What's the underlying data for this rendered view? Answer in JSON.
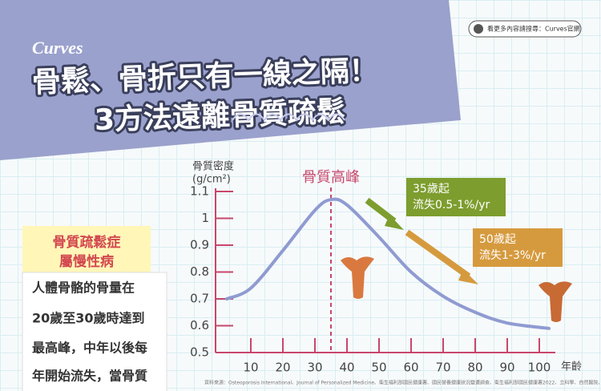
{
  "header": {
    "brand": "Curves",
    "title": [
      "骨鬆、骨折只有一線之隔！",
      "3方法遠離骨質疏鬆"
    ],
    "search": "看更多內容請搜尋：Curves官網"
  },
  "side_panel": {
    "title": [
      "骨質疏鬆症",
      "屬慢性病"
    ],
    "lines": [
      "人體骨骼的骨量在",
      "20歲至30歲時達到",
      "最高峰，中年以後每",
      "年開始流失，當骨質"
    ]
  },
  "footer": {
    "source": "資料來源：Osteoporosis International、Journal of Personalized Medicine、衛生福利部國民健康署、國民營養健康狀況變遷調查、衛生福利部國民健康署2022、立科學、自然醫院、hello醫師"
  },
  "chart_data": {
    "type": "line",
    "ylabel": [
      "骨質密度",
      "(g/cm²)"
    ],
    "xlabel": "年齡",
    "annotations": [
      "骨質高峰",
      "35歲起",
      "流失0.5-1%/yr",
      "50歲起",
      "流失1-3%/yr"
    ],
    "peak_x": 35,
    "x": [
      2.5,
      10,
      20,
      30,
      35,
      40,
      50,
      60,
      70,
      80,
      90,
      103
    ],
    "series": [
      {
        "color": "#8f9bd1",
        "values": [
          0.7,
          0.74,
          0.88,
          1.03,
          1.07,
          1.05,
          0.93,
          0.8,
          0.71,
          0.65,
          0.61,
          0.59
        ]
      }
    ],
    "xlim": [
      -1,
      107
    ],
    "ylim": [
      0.5,
      1.1
    ],
    "xticks": [
      10,
      20,
      30,
      40,
      50,
      60,
      70,
      80,
      90,
      100
    ],
    "yticks": [
      0.5,
      0.6,
      0.7,
      0.8,
      0.9,
      1,
      1.1
    ],
    "axis_color": "#c8466b"
  }
}
